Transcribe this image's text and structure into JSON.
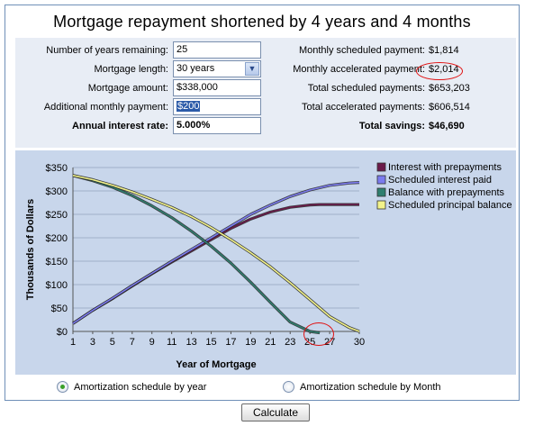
{
  "title": "Mortgage repayment shortened by 4 years and 4 months",
  "form": {
    "years_remaining": {
      "label": "Number of years remaining:",
      "value": "25"
    },
    "mortgage_length": {
      "label": "Mortgage length:",
      "value": "30 years",
      "dropdown_icon": "chevron-down-icon"
    },
    "mortgage_amount": {
      "label": "Mortgage amount:",
      "value": "$338,000"
    },
    "additional_payment": {
      "label": "Additional monthly payment:",
      "value": "$200"
    },
    "interest_rate": {
      "label": "Annual interest rate:",
      "value": "5.000%"
    }
  },
  "summary": {
    "monthly_scheduled": {
      "label": "Monthly scheduled payment:",
      "value": "$1,814"
    },
    "monthly_accelerated": {
      "label": "Monthly accelerated payment:",
      "value": "$2,014"
    },
    "total_scheduled": {
      "label": "Total scheduled payments:",
      "value": "$653,203"
    },
    "total_accelerated": {
      "label": "Total accelerated payments:",
      "value": "$606,514"
    },
    "total_savings": {
      "label": "Total savings:",
      "value": "$46,690"
    }
  },
  "chart_data": {
    "type": "line",
    "xlabel": "Year of Mortgage",
    "ylabel": "Thousands of Dollars",
    "x_ticks": [
      "1",
      "3",
      "5",
      "7",
      "9",
      "11",
      "13",
      "15",
      "17",
      "19",
      "21",
      "23",
      "25",
      "27",
      "30"
    ],
    "y_ticks": [
      "$0",
      "$50",
      "$100",
      "$150",
      "$200",
      "$250",
      "$300",
      "$350"
    ],
    "xlim": [
      1,
      30
    ],
    "ylim": [
      0,
      350
    ],
    "grid": true,
    "legend_position": "right",
    "series": [
      {
        "name": "Interest with prepayments",
        "color": "#6b1a4a",
        "points": [
          [
            1,
            17
          ],
          [
            3,
            45
          ],
          [
            5,
            70
          ],
          [
            7,
            97
          ],
          [
            9,
            123
          ],
          [
            11,
            148
          ],
          [
            13,
            172
          ],
          [
            15,
            196
          ],
          [
            17,
            220
          ],
          [
            19,
            240
          ],
          [
            21,
            255
          ],
          [
            23,
            265
          ],
          [
            25,
            270
          ],
          [
            26,
            271
          ],
          [
            30,
            271
          ]
        ]
      },
      {
        "name": "Scheduled interest paid",
        "color": "#7b7bee",
        "points": [
          [
            1,
            17
          ],
          [
            3,
            45
          ],
          [
            5,
            71
          ],
          [
            7,
            98
          ],
          [
            9,
            124
          ],
          [
            11,
            150
          ],
          [
            13,
            175
          ],
          [
            15,
            200
          ],
          [
            17,
            225
          ],
          [
            19,
            250
          ],
          [
            21,
            270
          ],
          [
            23,
            288
          ],
          [
            25,
            302
          ],
          [
            27,
            312
          ],
          [
            29,
            317
          ],
          [
            30,
            318
          ]
        ]
      },
      {
        "name": "Balance with prepayments",
        "color": "#2f7f6f",
        "points": [
          [
            1,
            333
          ],
          [
            3,
            322
          ],
          [
            5,
            308
          ],
          [
            7,
            290
          ],
          [
            9,
            268
          ],
          [
            11,
            243
          ],
          [
            13,
            214
          ],
          [
            15,
            182
          ],
          [
            17,
            146
          ],
          [
            19,
            105
          ],
          [
            21,
            62
          ],
          [
            23,
            20
          ],
          [
            25,
            0
          ],
          [
            26,
            -3
          ]
        ]
      },
      {
        "name": "Scheduled principal balance",
        "color": "#f2f28a",
        "points": [
          [
            1,
            333
          ],
          [
            3,
            324
          ],
          [
            5,
            312
          ],
          [
            7,
            298
          ],
          [
            9,
            282
          ],
          [
            11,
            265
          ],
          [
            13,
            245
          ],
          [
            15,
            222
          ],
          [
            17,
            196
          ],
          [
            19,
            168
          ],
          [
            21,
            138
          ],
          [
            23,
            104
          ],
          [
            25,
            68
          ],
          [
            27,
            32
          ],
          [
            29,
            8
          ],
          [
            30,
            0
          ]
        ]
      }
    ]
  },
  "radios": {
    "by_year": {
      "label": "Amortization schedule by year",
      "checked": true
    },
    "by_month": {
      "label": "Amortization schedule by Month",
      "checked": false
    }
  },
  "calculate_label": "Calculate",
  "colors": {
    "panel": "#e8edf5",
    "chart_bg": "#c8d6eb",
    "border": "#6f90b8",
    "annotation": "#e01010"
  }
}
